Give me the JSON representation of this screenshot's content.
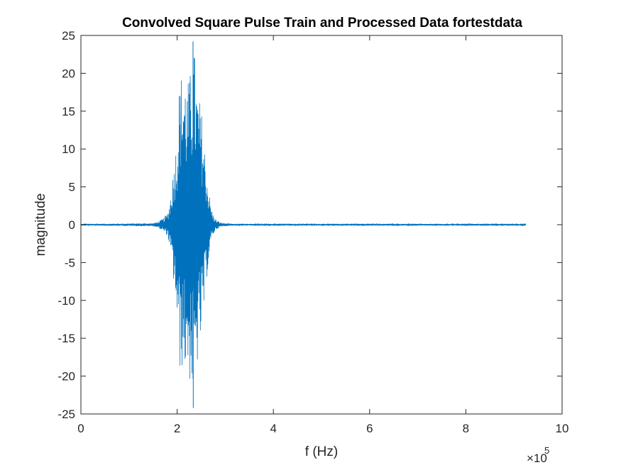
{
  "chart_data": {
    "type": "line",
    "title": "Convolved Square Pulse Train and Processed Data fortestdata",
    "xlabel": "f (Hz)",
    "ylabel": "magnitude",
    "xlim": [
      0,
      1000000
    ],
    "ylim": [
      -25,
      25
    ],
    "x_exponent_label": {
      "times": "×10",
      "power": "5"
    },
    "x_ticks": [
      0,
      200000,
      400000,
      600000,
      800000,
      1000000
    ],
    "x_tick_labels": [
      "0",
      "2",
      "4",
      "6",
      "8",
      "10"
    ],
    "y_ticks": [
      -25,
      -20,
      -15,
      -10,
      -5,
      0,
      5,
      10,
      15,
      20,
      25
    ],
    "y_tick_labels": [
      "-25",
      "-20",
      "-15",
      "-10",
      "-5",
      "0",
      "5",
      "10",
      "15",
      "20",
      "25"
    ],
    "grid": false,
    "series": [
      {
        "color": "#0072BD",
        "x_start": 0,
        "x_end": 925000,
        "envelope_x": [
          0,
          150000,
          160000,
          170000,
          180000,
          185000,
          190000,
          195000,
          200000,
          205000,
          210000,
          215000,
          220000,
          225000,
          230000,
          235000,
          240000,
          245000,
          250000,
          255000,
          260000,
          265000,
          270000,
          275000,
          280000,
          290000,
          300000,
          320000,
          925000
        ],
        "envelope_upper": [
          0.1,
          0.2,
          0.4,
          0.8,
          1.5,
          3.0,
          6.0,
          9.0,
          12.0,
          19.0,
          20.5,
          20.5,
          18.5,
          19.5,
          21.0,
          24.0,
          19.0,
          17.0,
          15.5,
          12.0,
          8.0,
          5.0,
          2.5,
          1.3,
          0.7,
          0.3,
          0.2,
          0.1,
          0.1
        ],
        "envelope_lower": [
          -0.1,
          -0.2,
          -0.4,
          -0.8,
          -1.5,
          -3.0,
          -6.0,
          -9.0,
          -13.0,
          -19.5,
          -19.0,
          -19.5,
          -18.5,
          -20.5,
          -21.5,
          -24.0,
          -19.5,
          -17.5,
          -15.0,
          -12.0,
          -8.0,
          -5.0,
          -2.5,
          -1.3,
          -0.7,
          -0.3,
          -0.2,
          -0.1,
          -0.1
        ],
        "peak_max": {
          "x": 233000,
          "y": 24.2
        },
        "peak_min": {
          "x": 233500,
          "y": -24.2
        }
      }
    ]
  }
}
